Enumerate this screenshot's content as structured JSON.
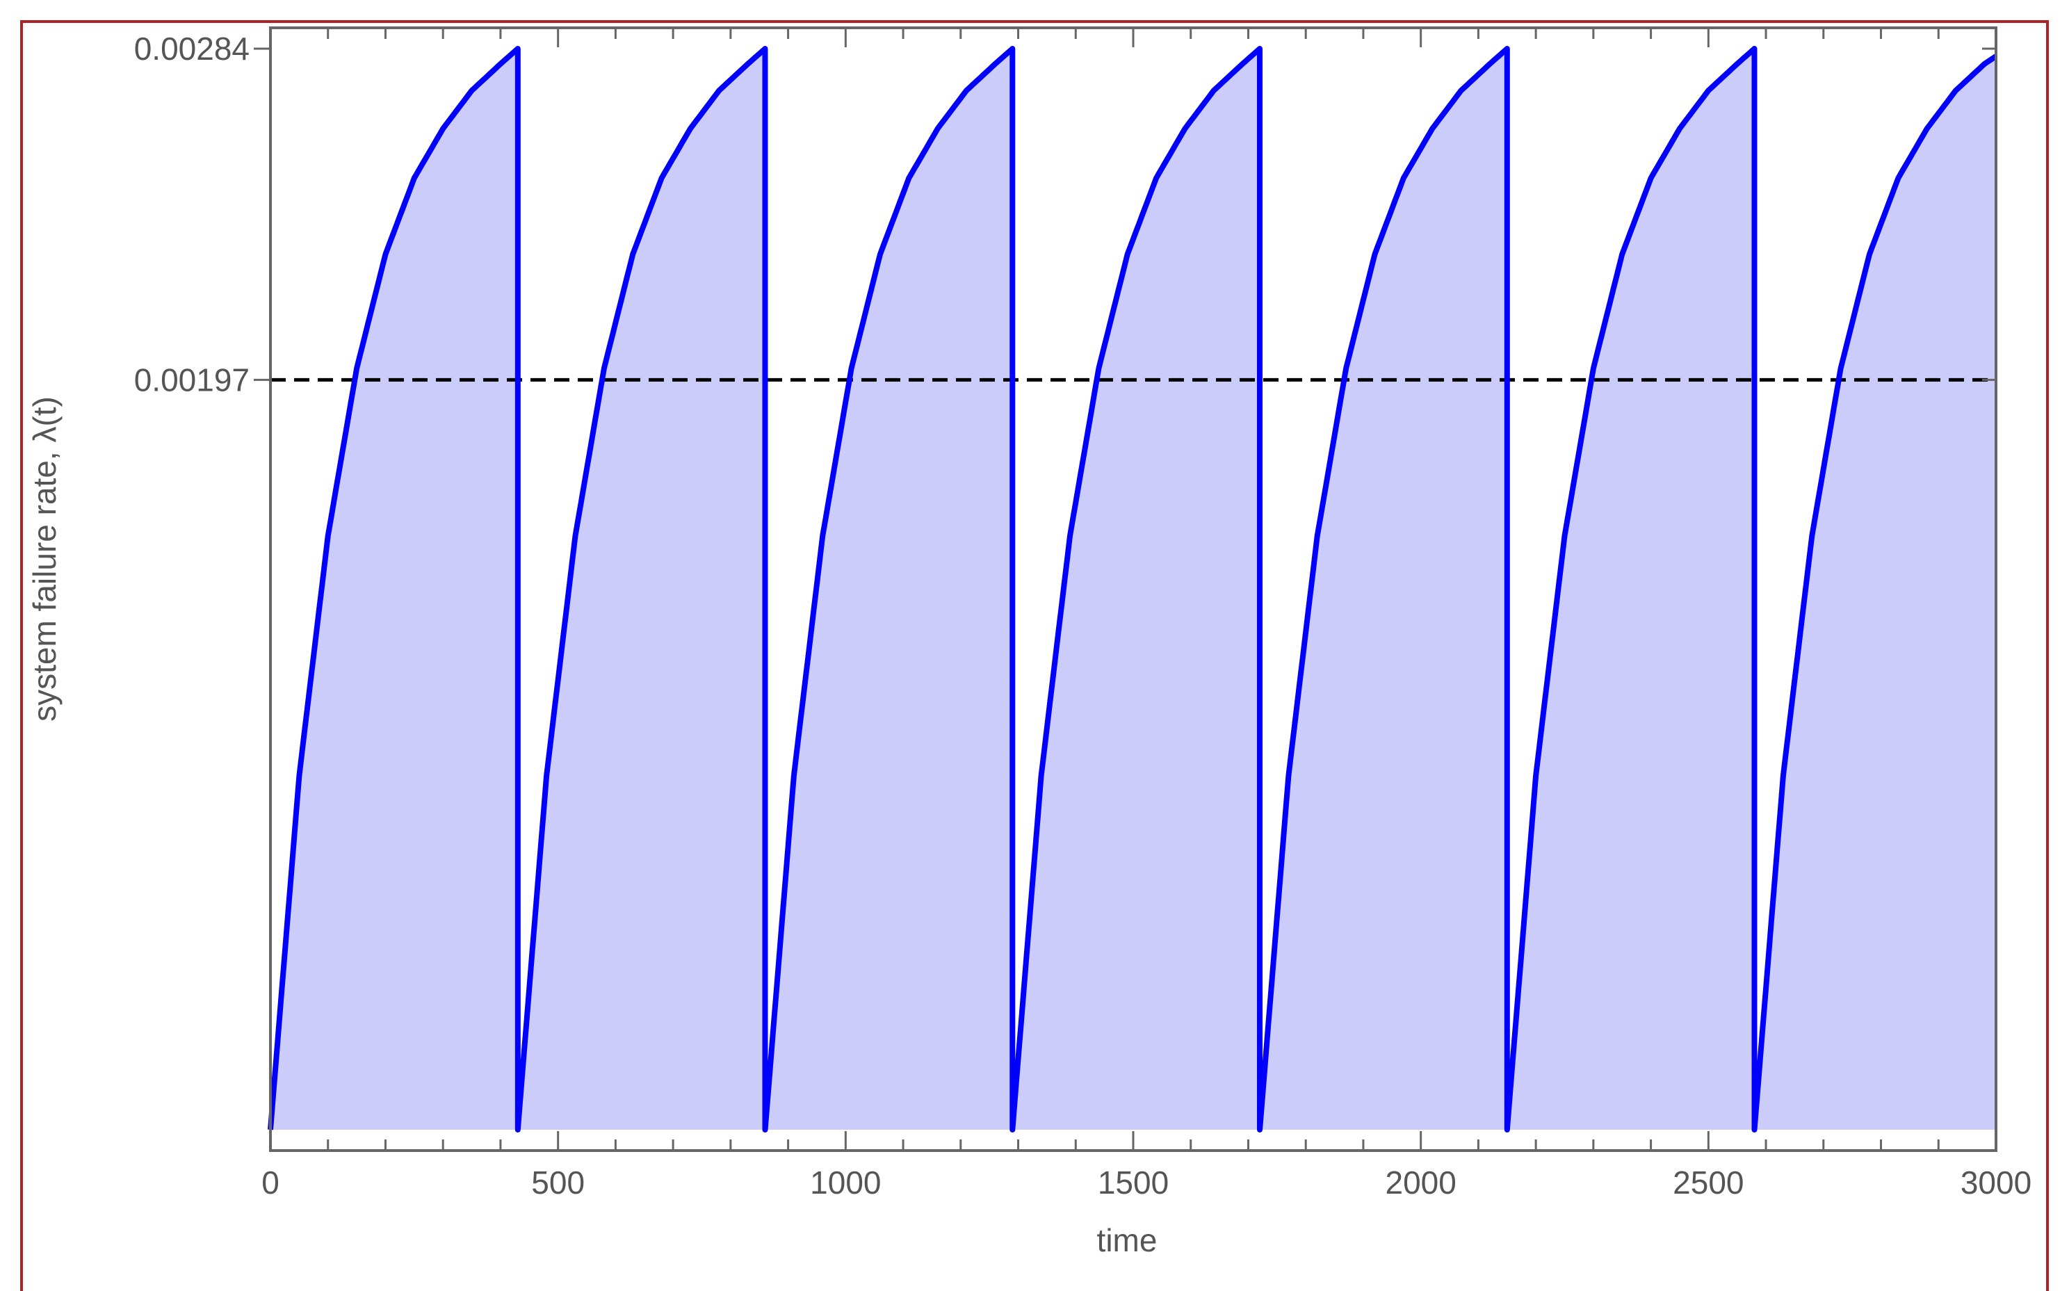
{
  "chart_data": {
    "type": "area",
    "title": "",
    "xlabel": "time",
    "ylabel": "system failure rate, λ(t)",
    "xlim": [
      0,
      3000
    ],
    "ylim": [
      0,
      0.00284
    ],
    "x_ticks": [
      0,
      500,
      1000,
      1500,
      2000,
      2500,
      3000
    ],
    "x_tick_labels": [
      "0",
      "500",
      "1000",
      "1500",
      "2000",
      "2500",
      "3000"
    ],
    "x_minor_tick_step": 100,
    "y_ticks": [
      0.00197,
      0.00284
    ],
    "y_tick_labels": [
      "0.00197",
      "0.00284"
    ],
    "grid": false,
    "legend": "none",
    "series": [
      {
        "x": [
          0,
          50,
          100,
          150,
          200,
          250,
          300,
          350,
          400,
          430,
          430.01,
          480,
          530,
          580,
          630,
          680,
          730,
          780,
          830,
          860,
          860.01,
          910,
          960,
          1010,
          1060,
          1110,
          1160,
          1210,
          1260,
          1290,
          1290.01,
          1340,
          1390,
          1440,
          1490,
          1540,
          1590,
          1640,
          1690,
          1720,
          1720.01,
          1770,
          1820,
          1870,
          1920,
          1970,
          2020,
          2070,
          2120,
          2150,
          2150.01,
          2200,
          2250,
          2300,
          2350,
          2400,
          2450,
          2500,
          2550,
          2580,
          2580.01,
          2630,
          2680,
          2730,
          2780,
          2830,
          2880,
          2930,
          2980,
          3000
        ],
        "y": [
          0,
          0.00093,
          0.00156,
          0.002,
          0.0023,
          0.0025,
          0.00263,
          0.00273,
          0.0028,
          0.00284,
          0,
          0.00093,
          0.00156,
          0.002,
          0.0023,
          0.0025,
          0.00263,
          0.00273,
          0.0028,
          0.00284,
          0,
          0.00093,
          0.00156,
          0.002,
          0.0023,
          0.0025,
          0.00263,
          0.00273,
          0.0028,
          0.00284,
          0,
          0.00093,
          0.00156,
          0.002,
          0.0023,
          0.0025,
          0.00263,
          0.00273,
          0.0028,
          0.00284,
          0,
          0.00093,
          0.00156,
          0.002,
          0.0023,
          0.0025,
          0.00263,
          0.00273,
          0.0028,
          0.00284,
          0,
          0.00093,
          0.00156,
          0.002,
          0.0023,
          0.0025,
          0.00263,
          0.00273,
          0.0028,
          0.00284,
          0,
          0.00093,
          0.00156,
          0.002,
          0.0023,
          0.0025,
          0.00263,
          0.00273,
          0.0028,
          0.00282
        ],
        "color": "#0000ff",
        "fill_color": "#ccccfa"
      }
    ],
    "reference_lines": [
      {
        "type": "horizontal",
        "y": 0.00197,
        "style": "dashed",
        "color": "#000000"
      }
    ],
    "colors": {
      "frame_border": "#b22222",
      "axis": "#666666",
      "tick_text": "#555555"
    }
  }
}
